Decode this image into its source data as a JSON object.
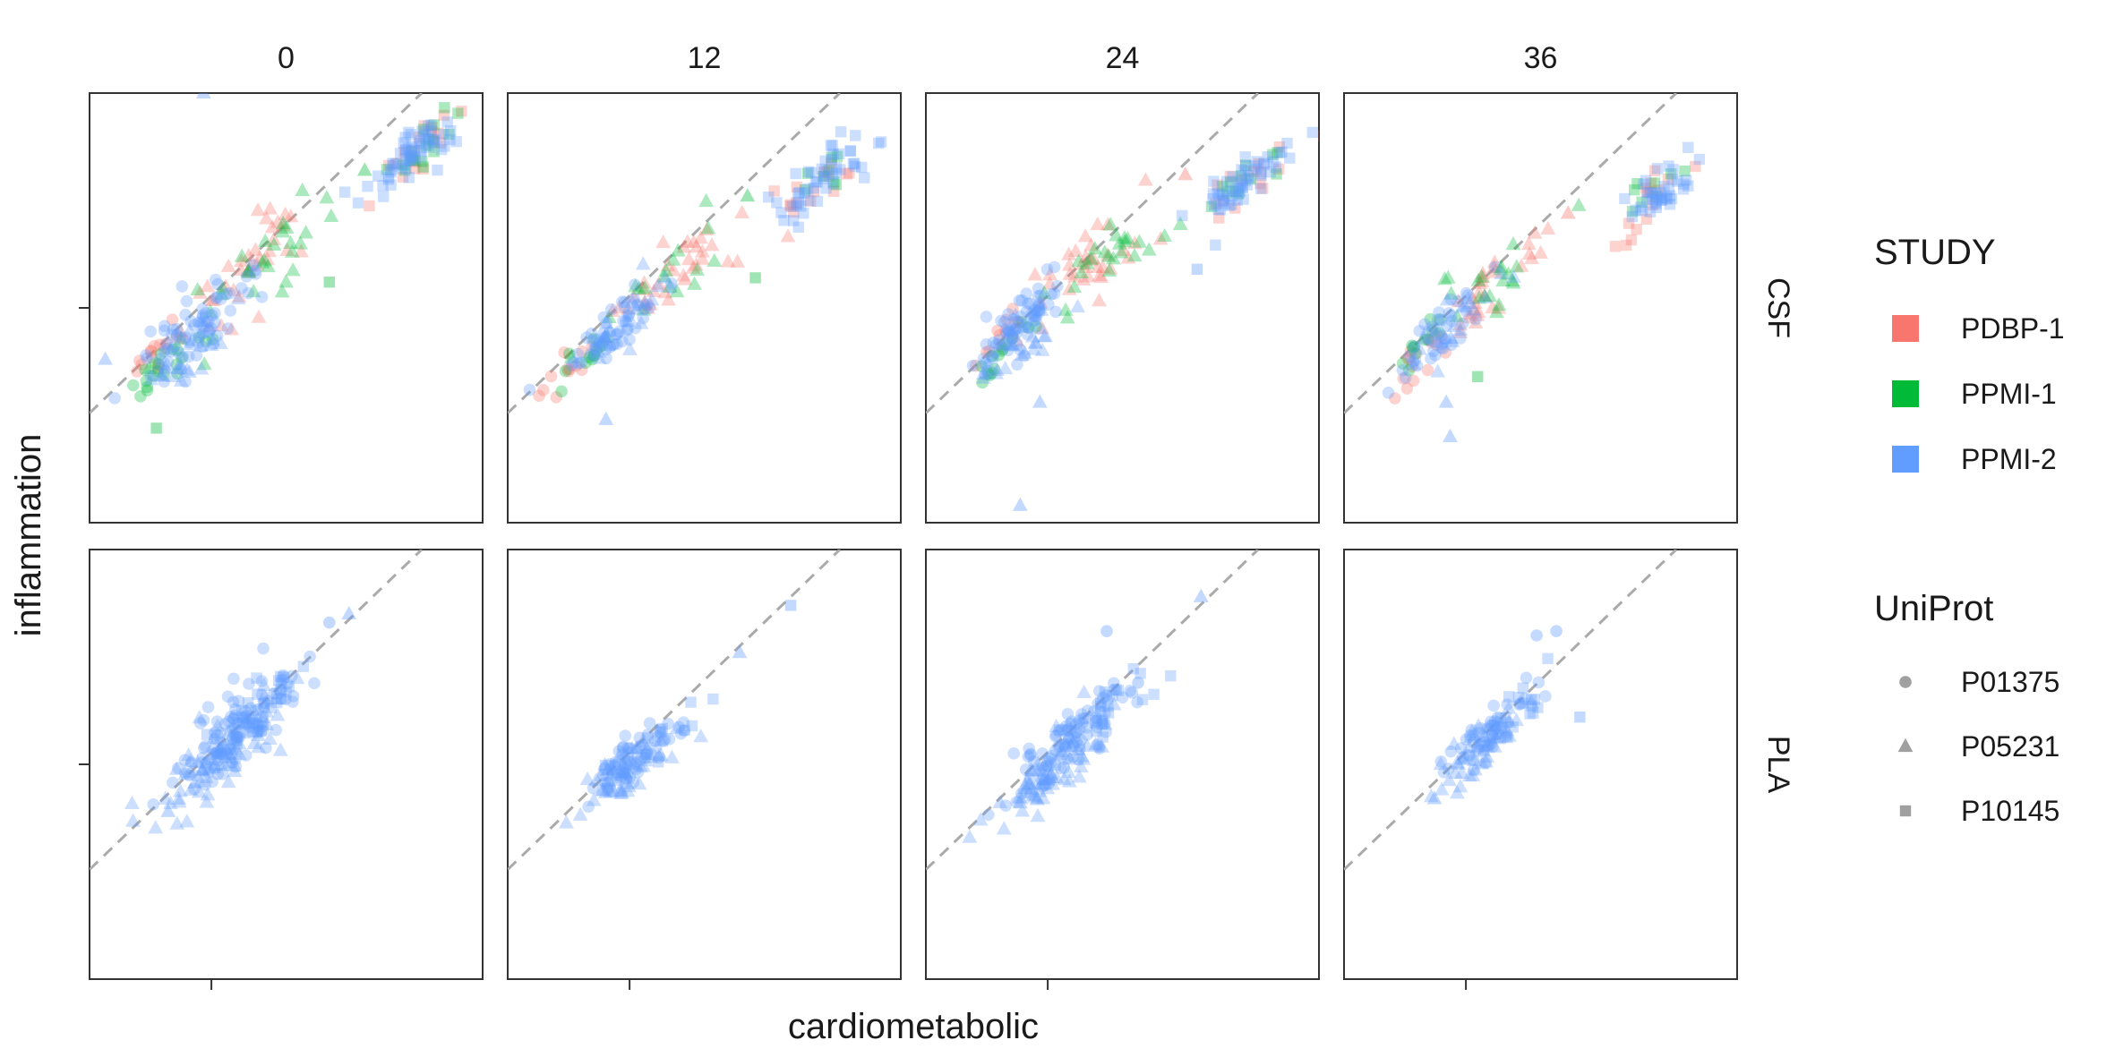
{
  "chart_data": {
    "type": "scatter",
    "facet_cols_label": "",
    "facet_cols": [
      "0",
      "12",
      "24",
      "36"
    ],
    "facet_rows": [
      "CSF",
      "PLA"
    ],
    "xlabel": "cardiometabolic",
    "ylabel": "inflammation",
    "reference_line": "y = x (dashed)",
    "grid": false,
    "legend_placement": "right",
    "legends": [
      {
        "title": "STUDY",
        "kind": "color",
        "entries": [
          {
            "label": "PDBP-1",
            "color": "#F8766D"
          },
          {
            "label": "PPMI-1",
            "color": "#00BA38"
          },
          {
            "label": "PPMI-2",
            "color": "#619CFF"
          }
        ]
      },
      {
        "title": "UniProt",
        "kind": "shape",
        "entries": [
          {
            "label": "P01375",
            "shape": "circle"
          },
          {
            "label": "P05231",
            "shape": "triangle"
          },
          {
            "label": "P10145",
            "shape": "square"
          }
        ]
      }
    ],
    "panels": [
      {
        "row": "CSF",
        "col": "0",
        "clusters": [
          {
            "study": "PPMI-2",
            "shape": "circle",
            "cx": 0.27,
            "cy": 0.45,
            "sx": 0.07,
            "sy": 0.06,
            "n": 70
          },
          {
            "study": "PPMI-1",
            "shape": "circle",
            "cx": 0.2,
            "cy": 0.38,
            "sx": 0.05,
            "sy": 0.04,
            "n": 20
          },
          {
            "study": "PDBP-1",
            "shape": "circle",
            "cx": 0.18,
            "cy": 0.4,
            "sx": 0.05,
            "sy": 0.04,
            "n": 15
          },
          {
            "study": "PDBP-1",
            "shape": "triangle",
            "cx": 0.42,
            "cy": 0.6,
            "sx": 0.09,
            "sy": 0.08,
            "n": 35
          },
          {
            "study": "PPMI-1",
            "shape": "triangle",
            "cx": 0.45,
            "cy": 0.62,
            "sx": 0.09,
            "sy": 0.08,
            "n": 30
          },
          {
            "study": "PPMI-2",
            "shape": "triangle",
            "cx": 0.25,
            "cy": 0.4,
            "sx": 0.06,
            "sy": 0.06,
            "n": 25
          },
          {
            "study": "PDBP-1",
            "shape": "square",
            "cx": 0.82,
            "cy": 0.86,
            "sx": 0.06,
            "sy": 0.05,
            "n": 18
          },
          {
            "study": "PPMI-1",
            "shape": "square",
            "cx": 0.85,
            "cy": 0.88,
            "sx": 0.06,
            "sy": 0.05,
            "n": 18
          },
          {
            "study": "PPMI-2",
            "shape": "square",
            "cx": 0.84,
            "cy": 0.87,
            "sx": 0.07,
            "sy": 0.05,
            "n": 60
          }
        ],
        "outliers": [
          {
            "study": "PPMI-2",
            "shape": "triangle",
            "x": 0.29,
            "y": 1.0
          },
          {
            "study": "PPMI-1",
            "shape": "square",
            "x": 0.17,
            "y": 0.22
          },
          {
            "study": "PPMI-2",
            "shape": "triangle",
            "x": 0.04,
            "y": 0.38
          },
          {
            "study": "PPMI-1",
            "shape": "square",
            "x": 0.61,
            "y": 0.56
          },
          {
            "study": "PPMI-1",
            "shape": "triangle",
            "x": 0.7,
            "y": 0.82
          }
        ]
      },
      {
        "row": "CSF",
        "col": "12",
        "clusters": [
          {
            "study": "PPMI-2",
            "shape": "circle",
            "cx": 0.27,
            "cy": 0.45,
            "sx": 0.06,
            "sy": 0.05,
            "n": 55
          },
          {
            "study": "PPMI-1",
            "shape": "circle",
            "cx": 0.2,
            "cy": 0.38,
            "sx": 0.04,
            "sy": 0.04,
            "n": 12
          },
          {
            "study": "PDBP-1",
            "shape": "circle",
            "cx": 0.17,
            "cy": 0.38,
            "sx": 0.04,
            "sy": 0.04,
            "n": 12
          },
          {
            "study": "PDBP-1",
            "shape": "triangle",
            "cx": 0.42,
            "cy": 0.58,
            "sx": 0.09,
            "sy": 0.07,
            "n": 35
          },
          {
            "study": "PPMI-1",
            "shape": "triangle",
            "cx": 0.4,
            "cy": 0.57,
            "sx": 0.09,
            "sy": 0.07,
            "n": 18
          },
          {
            "study": "PPMI-2",
            "shape": "triangle",
            "cx": 0.3,
            "cy": 0.47,
            "sx": 0.07,
            "sy": 0.06,
            "n": 20
          },
          {
            "study": "PDBP-1",
            "shape": "square",
            "cx": 0.8,
            "cy": 0.8,
            "sx": 0.06,
            "sy": 0.05,
            "n": 15
          },
          {
            "study": "PPMI-1",
            "shape": "square",
            "cx": 0.8,
            "cy": 0.8,
            "sx": 0.05,
            "sy": 0.04,
            "n": 8
          },
          {
            "study": "PPMI-2",
            "shape": "square",
            "cx": 0.8,
            "cy": 0.8,
            "sx": 0.06,
            "sy": 0.05,
            "n": 50
          }
        ],
        "outliers": [
          {
            "study": "PPMI-2",
            "shape": "triangle",
            "x": 0.25,
            "y": 0.24
          },
          {
            "study": "PPMI-1",
            "shape": "square",
            "x": 0.63,
            "y": 0.57
          },
          {
            "study": "PPMI-1",
            "shape": "triangle",
            "x": 0.61,
            "y": 0.76
          }
        ]
      },
      {
        "row": "CSF",
        "col": "24",
        "clusters": [
          {
            "study": "PPMI-2",
            "shape": "circle",
            "cx": 0.22,
            "cy": 0.45,
            "sx": 0.06,
            "sy": 0.06,
            "n": 70
          },
          {
            "study": "PPMI-1",
            "shape": "circle",
            "cx": 0.2,
            "cy": 0.4,
            "sx": 0.04,
            "sy": 0.04,
            "n": 15
          },
          {
            "study": "PDBP-1",
            "shape": "circle",
            "cx": 0.17,
            "cy": 0.42,
            "sx": 0.04,
            "sy": 0.04,
            "n": 12
          },
          {
            "study": "PDBP-1",
            "shape": "triangle",
            "cx": 0.42,
            "cy": 0.6,
            "sx": 0.1,
            "sy": 0.08,
            "n": 35
          },
          {
            "study": "PPMI-1",
            "shape": "triangle",
            "cx": 0.45,
            "cy": 0.62,
            "sx": 0.09,
            "sy": 0.07,
            "n": 25
          },
          {
            "study": "PPMI-2",
            "shape": "triangle",
            "cx": 0.25,
            "cy": 0.42,
            "sx": 0.06,
            "sy": 0.06,
            "n": 25
          },
          {
            "study": "PDBP-1",
            "shape": "square",
            "cx": 0.8,
            "cy": 0.78,
            "sx": 0.06,
            "sy": 0.05,
            "n": 15
          },
          {
            "study": "PPMI-1",
            "shape": "square",
            "cx": 0.82,
            "cy": 0.8,
            "sx": 0.06,
            "sy": 0.05,
            "n": 12
          },
          {
            "study": "PPMI-2",
            "shape": "square",
            "cx": 0.8,
            "cy": 0.78,
            "sx": 0.06,
            "sy": 0.05,
            "n": 55
          }
        ],
        "outliers": [
          {
            "study": "PPMI-2",
            "shape": "triangle",
            "x": 0.24,
            "y": 0.04
          },
          {
            "study": "PPMI-2",
            "shape": "triangle",
            "x": 0.29,
            "y": 0.28
          },
          {
            "study": "PPMI-2",
            "shape": "square",
            "x": 0.69,
            "y": 0.59
          },
          {
            "study": "PDBP-1",
            "shape": "triangle",
            "x": 0.66,
            "y": 0.81
          }
        ]
      },
      {
        "row": "CSF",
        "col": "36",
        "clusters": [
          {
            "study": "PPMI-2",
            "shape": "circle",
            "cx": 0.25,
            "cy": 0.45,
            "sx": 0.05,
            "sy": 0.05,
            "n": 40
          },
          {
            "study": "PPMI-1",
            "shape": "circle",
            "cx": 0.2,
            "cy": 0.42,
            "sx": 0.04,
            "sy": 0.04,
            "n": 12
          },
          {
            "study": "PDBP-1",
            "shape": "circle",
            "cx": 0.2,
            "cy": 0.38,
            "sx": 0.04,
            "sy": 0.04,
            "n": 15
          },
          {
            "study": "PDBP-1",
            "shape": "triangle",
            "cx": 0.38,
            "cy": 0.55,
            "sx": 0.08,
            "sy": 0.07,
            "n": 30
          },
          {
            "study": "PPMI-1",
            "shape": "triangle",
            "cx": 0.38,
            "cy": 0.56,
            "sx": 0.08,
            "sy": 0.07,
            "n": 20
          },
          {
            "study": "PPMI-2",
            "shape": "triangle",
            "cx": 0.3,
            "cy": 0.48,
            "sx": 0.06,
            "sy": 0.06,
            "n": 20
          },
          {
            "study": "PDBP-1",
            "shape": "square",
            "cx": 0.78,
            "cy": 0.75,
            "sx": 0.05,
            "sy": 0.05,
            "n": 15
          },
          {
            "study": "PPMI-1",
            "shape": "square",
            "cx": 0.8,
            "cy": 0.78,
            "sx": 0.05,
            "sy": 0.04,
            "n": 8
          },
          {
            "study": "PPMI-2",
            "shape": "square",
            "cx": 0.8,
            "cy": 0.77,
            "sx": 0.05,
            "sy": 0.04,
            "n": 40
          }
        ],
        "outliers": [
          {
            "study": "PPMI-2",
            "shape": "triangle",
            "x": 0.27,
            "y": 0.2
          },
          {
            "study": "PPMI-2",
            "shape": "triangle",
            "x": 0.26,
            "y": 0.28
          },
          {
            "study": "PPMI-1",
            "shape": "square",
            "x": 0.34,
            "y": 0.34
          },
          {
            "study": "PDBP-1",
            "shape": "triangle",
            "x": 0.57,
            "y": 0.72
          }
        ]
      },
      {
        "row": "PLA",
        "col": "0",
        "clusters": [
          {
            "study": "PPMI-2",
            "shape": "circle",
            "cx": 0.38,
            "cy": 0.58,
            "sx": 0.08,
            "sy": 0.07,
            "n": 110
          },
          {
            "study": "PPMI-2",
            "shape": "triangle",
            "cx": 0.32,
            "cy": 0.5,
            "sx": 0.08,
            "sy": 0.07,
            "n": 70
          },
          {
            "study": "PPMI-2",
            "shape": "square",
            "cx": 0.44,
            "cy": 0.63,
            "sx": 0.06,
            "sy": 0.05,
            "n": 30
          }
        ],
        "outliers": [
          {
            "study": "PPMI-2",
            "shape": "circle",
            "x": 0.61,
            "y": 0.83
          },
          {
            "study": "PPMI-2",
            "shape": "triangle",
            "x": 0.66,
            "y": 0.85
          },
          {
            "study": "PPMI-2",
            "shape": "triangle",
            "x": 0.2,
            "y": 0.39
          }
        ]
      },
      {
        "row": "PLA",
        "col": "12",
        "clusters": [
          {
            "study": "PPMI-2",
            "shape": "circle",
            "cx": 0.33,
            "cy": 0.52,
            "sx": 0.06,
            "sy": 0.05,
            "n": 60
          },
          {
            "study": "PPMI-2",
            "shape": "triangle",
            "cx": 0.3,
            "cy": 0.49,
            "sx": 0.07,
            "sy": 0.06,
            "n": 50
          },
          {
            "study": "PPMI-2",
            "shape": "square",
            "cx": 0.38,
            "cy": 0.56,
            "sx": 0.05,
            "sy": 0.04,
            "n": 15
          }
        ],
        "outliers": [
          {
            "study": "PPMI-2",
            "shape": "square",
            "x": 0.72,
            "y": 0.87
          },
          {
            "study": "PPMI-2",
            "shape": "triangle",
            "x": 0.59,
            "y": 0.76
          },
          {
            "study": "PPMI-2",
            "shape": "triangle",
            "x": 0.24,
            "y": 0.44
          }
        ]
      },
      {
        "row": "PLA",
        "col": "24",
        "clusters": [
          {
            "study": "PPMI-2",
            "shape": "circle",
            "cx": 0.37,
            "cy": 0.55,
            "sx": 0.07,
            "sy": 0.06,
            "n": 90
          },
          {
            "study": "PPMI-2",
            "shape": "triangle",
            "cx": 0.31,
            "cy": 0.48,
            "sx": 0.07,
            "sy": 0.06,
            "n": 60
          },
          {
            "study": "PPMI-2",
            "shape": "square",
            "cx": 0.45,
            "cy": 0.62,
            "sx": 0.06,
            "sy": 0.05,
            "n": 25
          }
        ],
        "outliers": [
          {
            "study": "PPMI-2",
            "shape": "triangle",
            "x": 0.7,
            "y": 0.89
          },
          {
            "study": "PPMI-2",
            "shape": "circle",
            "x": 0.46,
            "y": 0.81
          },
          {
            "study": "PPMI-2",
            "shape": "circle",
            "x": 0.54,
            "y": 0.69
          },
          {
            "study": "PPMI-2",
            "shape": "triangle",
            "x": 0.24,
            "y": 0.41
          }
        ]
      },
      {
        "row": "PLA",
        "col": "36",
        "clusters": [
          {
            "study": "PPMI-2",
            "shape": "circle",
            "cx": 0.38,
            "cy": 0.58,
            "sx": 0.06,
            "sy": 0.05,
            "n": 50
          },
          {
            "study": "PPMI-2",
            "shape": "triangle",
            "cx": 0.33,
            "cy": 0.52,
            "sx": 0.06,
            "sy": 0.06,
            "n": 40
          },
          {
            "study": "PPMI-2",
            "shape": "square",
            "cx": 0.44,
            "cy": 0.63,
            "sx": 0.05,
            "sy": 0.05,
            "n": 20
          }
        ],
        "outliers": [
          {
            "study": "PPMI-2",
            "shape": "circle",
            "x": 0.49,
            "y": 0.8
          },
          {
            "study": "PPMI-2",
            "shape": "circle",
            "x": 0.54,
            "y": 0.81
          },
          {
            "study": "PPMI-2",
            "shape": "square",
            "x": 0.6,
            "y": 0.61
          },
          {
            "study": "PPMI-2",
            "shape": "triangle",
            "x": 0.23,
            "y": 0.42
          }
        ]
      }
    ]
  }
}
